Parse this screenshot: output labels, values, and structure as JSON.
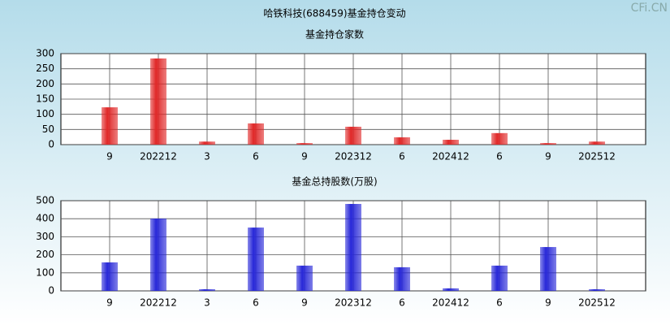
{
  "title": "哈铁科技(688459)基金持仓变动",
  "watermark": "CFi.CN",
  "chart_data": [
    {
      "type": "bar",
      "title": "基金持仓家数",
      "categories": [
        "9",
        "202212",
        "3",
        "6",
        "9",
        "202312",
        "6",
        "202412",
        "6",
        "9",
        "202512"
      ],
      "values": [
        123,
        284,
        10,
        70,
        5,
        59,
        24,
        16,
        38,
        5,
        10
      ],
      "color": "#e02828",
      "ylim": [
        0,
        300
      ],
      "yticks": [
        0,
        50,
        100,
        150,
        200,
        250,
        300
      ],
      "grid": true
    },
    {
      "type": "bar",
      "title": "基金总持股数(万股)",
      "categories": [
        "9",
        "202212",
        "3",
        "6",
        "9",
        "202312",
        "6",
        "202412",
        "6",
        "9",
        "202512"
      ],
      "values": [
        158,
        401,
        9,
        351,
        140,
        482,
        131,
        14,
        140,
        243,
        9
      ],
      "color": "#2828d8",
      "ylim": [
        0,
        500
      ],
      "yticks": [
        0,
        100,
        200,
        300,
        400,
        500
      ],
      "grid": true
    }
  ]
}
